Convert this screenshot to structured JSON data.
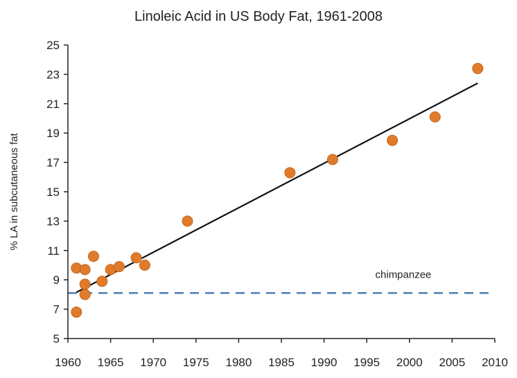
{
  "chart_data": {
    "type": "scatter",
    "title": "Linoleic Acid in US Body Fat, 1961-2008",
    "xlabel": "",
    "ylabel": "% LA in subcutaneous fat",
    "xlim": [
      1960,
      2010
    ],
    "ylim": [
      5,
      25
    ],
    "x_ticks": [
      1960,
      1965,
      1970,
      1975,
      1980,
      1985,
      1990,
      1995,
      2000,
      2005,
      2010
    ],
    "y_ticks": [
      5,
      7,
      9,
      11,
      13,
      15,
      17,
      19,
      21,
      23,
      25
    ],
    "grid": false,
    "legend": "none",
    "points": [
      {
        "x": 1961,
        "y": 9.8
      },
      {
        "x": 1961,
        "y": 6.8
      },
      {
        "x": 1962,
        "y": 9.7
      },
      {
        "x": 1962,
        "y": 8.7
      },
      {
        "x": 1962,
        "y": 8.0
      },
      {
        "x": 1963,
        "y": 10.6
      },
      {
        "x": 1964,
        "y": 8.9
      },
      {
        "x": 1965,
        "y": 9.7
      },
      {
        "x": 1966,
        "y": 9.9
      },
      {
        "x": 1968,
        "y": 10.5
      },
      {
        "x": 1969,
        "y": 10.0
      },
      {
        "x": 1974,
        "y": 13.0
      },
      {
        "x": 1986,
        "y": 16.3
      },
      {
        "x": 1991,
        "y": 17.2
      },
      {
        "x": 1998,
        "y": 18.5
      },
      {
        "x": 2003,
        "y": 20.1
      },
      {
        "x": 2008,
        "y": 23.4
      }
    ],
    "trendline": {
      "x": [
        1961,
        2008
      ],
      "y": [
        8.15,
        22.4
      ]
    },
    "reference_line": {
      "y": 8.1,
      "label": "chimpanzee",
      "style": "dashed"
    },
    "colors": {
      "points": "#E07B2C",
      "points_edge": "#C4661E",
      "trendline": "#111111",
      "reference": "#4A7DB8",
      "axis": "#222222"
    }
  }
}
